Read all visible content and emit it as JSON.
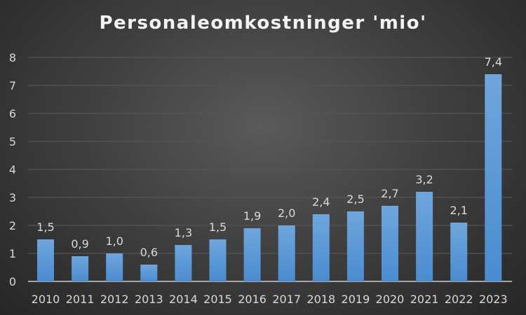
{
  "chart_data": {
    "type": "bar",
    "title": "Personaleomkostninger 'mio'",
    "xlabel": "",
    "ylabel": "",
    "categories": [
      "2010",
      "2011",
      "2012",
      "2013",
      "2014",
      "2015",
      "2016",
      "2017",
      "2018",
      "2019",
      "2020",
      "2021",
      "2022",
      "2023"
    ],
    "values": [
      1.5,
      0.9,
      1.0,
      0.6,
      1.3,
      1.5,
      1.9,
      2.0,
      2.4,
      2.5,
      2.7,
      3.2,
      2.1,
      7.4
    ],
    "data_labels": [
      "1,5",
      "0,9",
      "1,0",
      "0,6",
      "1,3",
      "1,5",
      "1,9",
      "2,0",
      "2,4",
      "2,5",
      "2,7",
      "3,2",
      "2,1",
      "7,4"
    ],
    "ylim": [
      0,
      8
    ],
    "yticks": [
      "0",
      "1",
      "2",
      "3",
      "4",
      "5",
      "6",
      "7",
      "8"
    ],
    "grid": true,
    "legend": "none",
    "colors": {
      "bar_top": "#6fa6dc",
      "bar_bottom": "#4a8bd0",
      "text": "#d9d9d9",
      "grid": "#555555"
    }
  }
}
